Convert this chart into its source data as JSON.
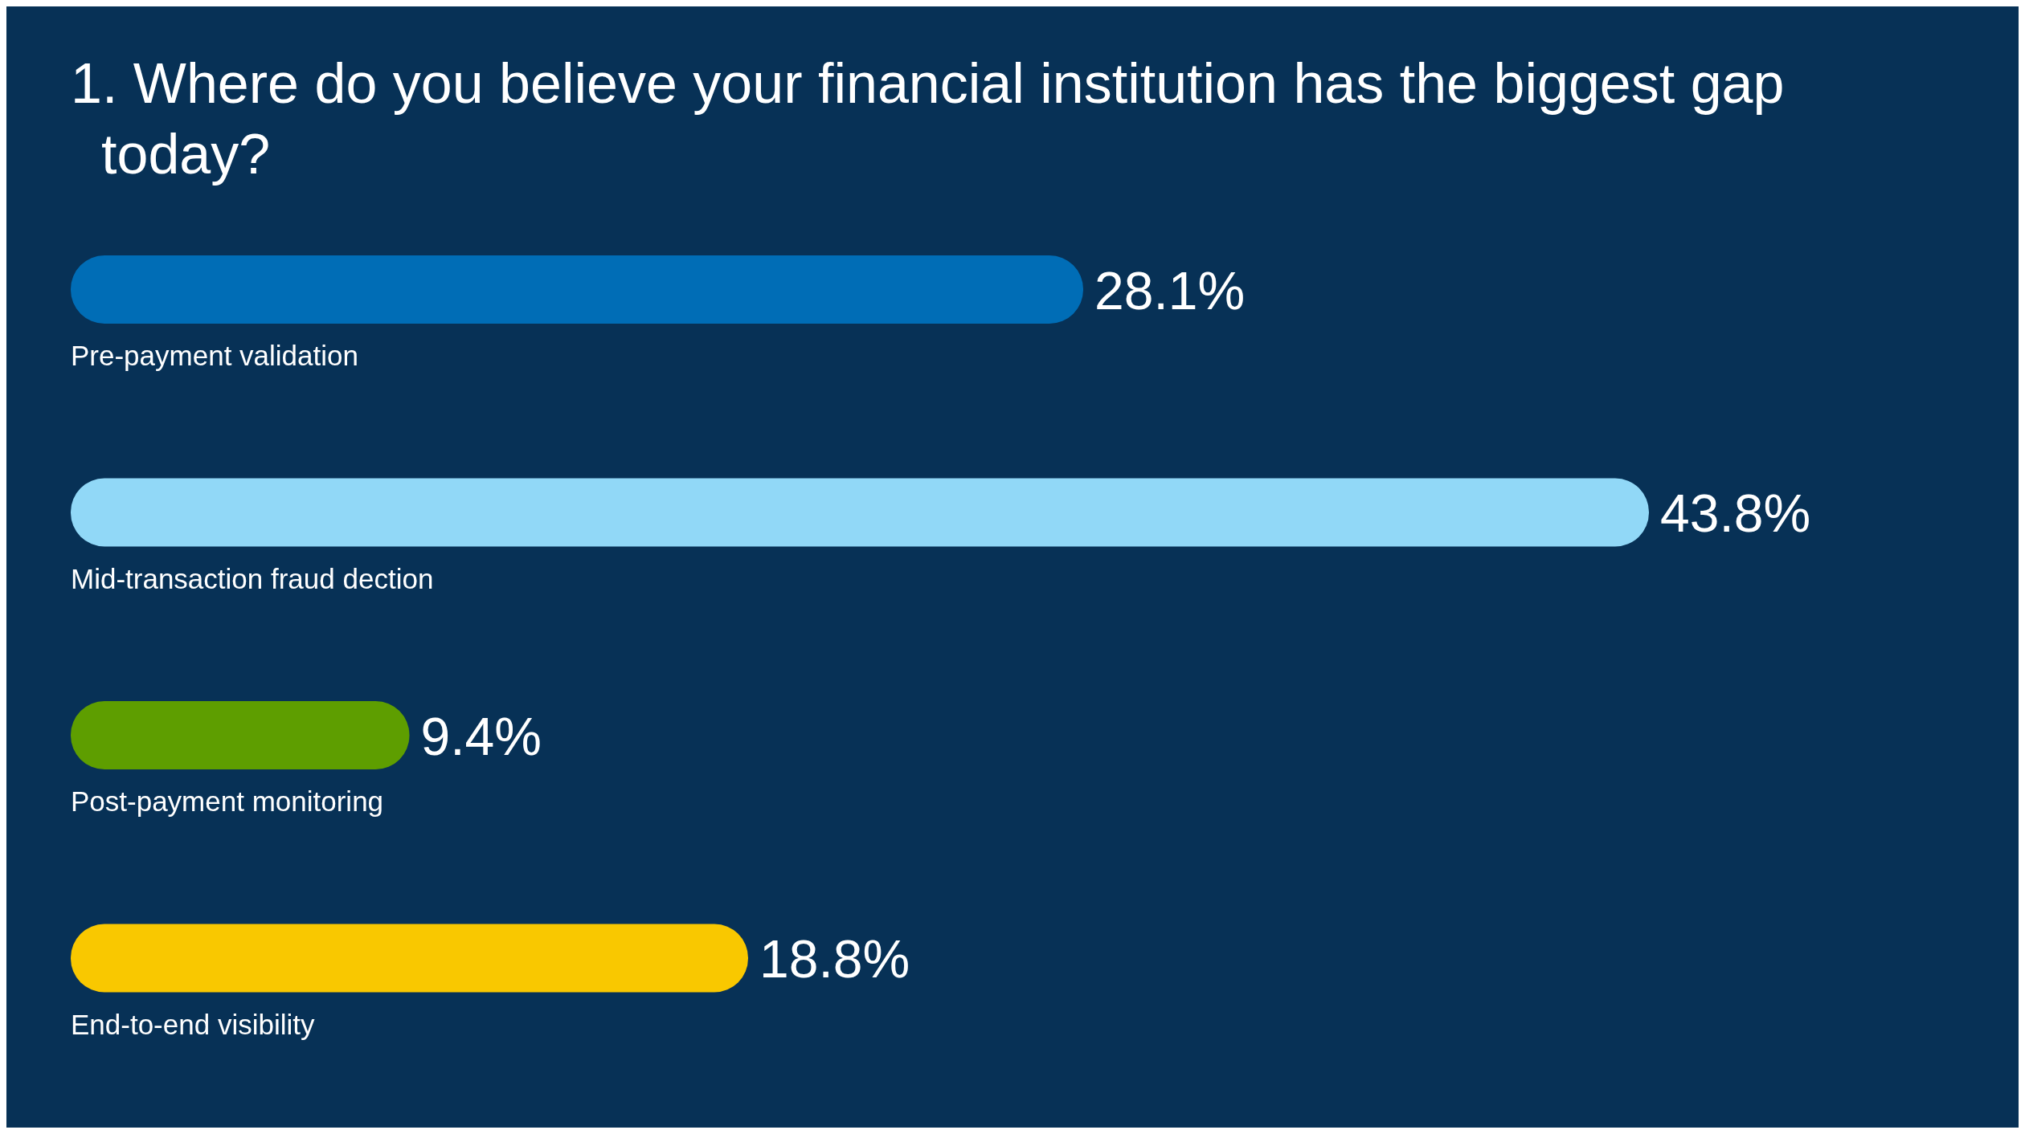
{
  "chart_data": {
    "type": "bar",
    "orientation": "horizontal",
    "title": "1. Where do you believe your financial institution has the biggest gap today?",
    "categories": [
      "Pre-payment validation",
      "Mid-transaction fraud dection",
      "Post-payment monitoring",
      "End-to-end visibility"
    ],
    "values": [
      28.1,
      43.8,
      9.4,
      18.8
    ],
    "colors": [
      "#006db6",
      "#91d8f7",
      "#5e9e00",
      "#f9c800"
    ],
    "value_labels": [
      "28.1%",
      "43.8%",
      "9.4%",
      "18.8%"
    ]
  }
}
